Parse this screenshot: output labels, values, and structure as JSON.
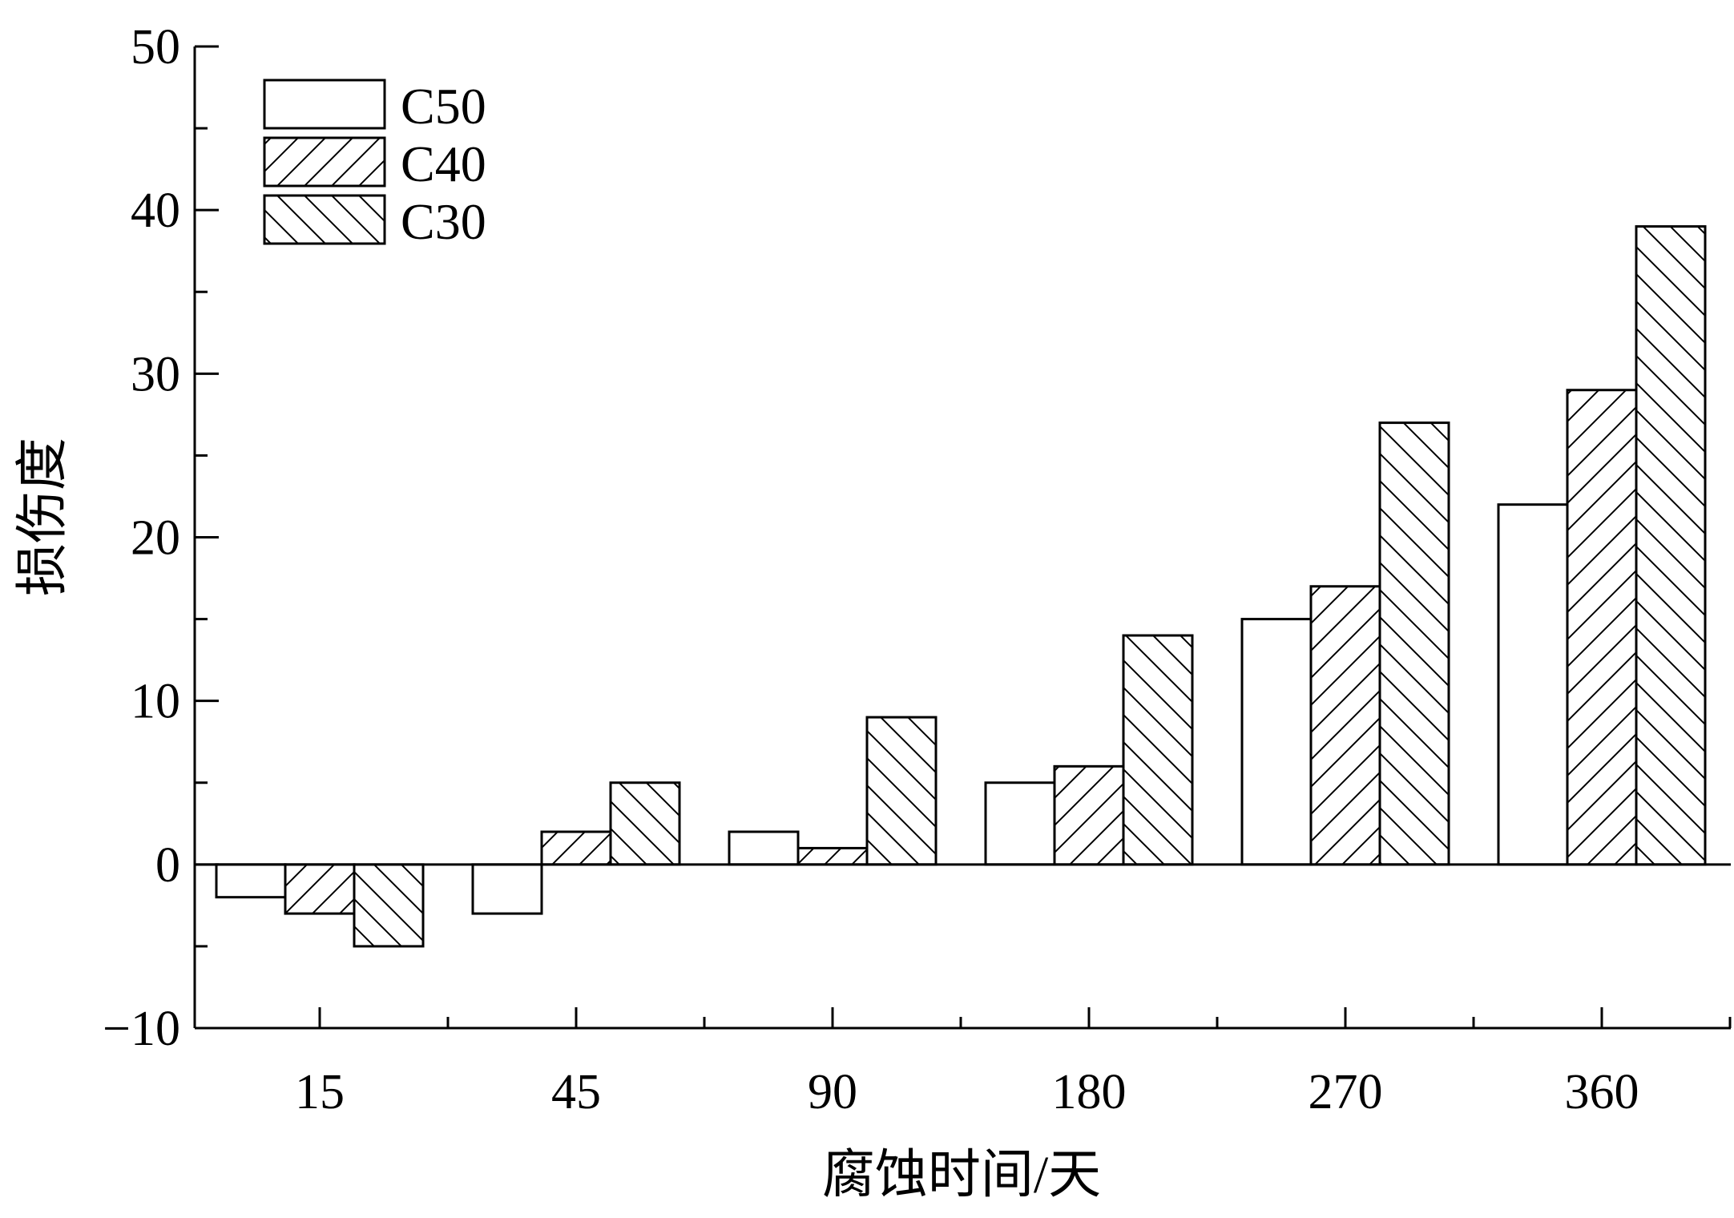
{
  "chart_data": {
    "type": "bar",
    "title": "",
    "xlabel": "腐蚀时间/天",
    "ylabel": "损伤度",
    "categories": [
      "15",
      "45",
      "90",
      "180",
      "270",
      "360"
    ],
    "series": [
      {
        "name": "C50",
        "pattern": "none",
        "values": [
          -2,
          -3,
          2,
          5,
          15,
          22
        ]
      },
      {
        "name": "C40",
        "pattern": "hatch-forward",
        "values": [
          -3,
          2,
          1,
          6,
          17,
          29
        ]
      },
      {
        "name": "C30",
        "pattern": "hatch-back",
        "values": [
          -5,
          5,
          9,
          14,
          27,
          39
        ]
      }
    ],
    "ylim": [
      -10,
      50
    ],
    "yticks": [
      -10,
      0,
      10,
      20,
      30,
      40,
      50
    ],
    "ytick_labels": [
      "−10",
      "0",
      "10",
      "20",
      "30",
      "40",
      "50"
    ],
    "grid": false,
    "legend_position": "top-left",
    "colors": {
      "bar_fill": "#ffffff",
      "stroke": "#000000"
    }
  }
}
